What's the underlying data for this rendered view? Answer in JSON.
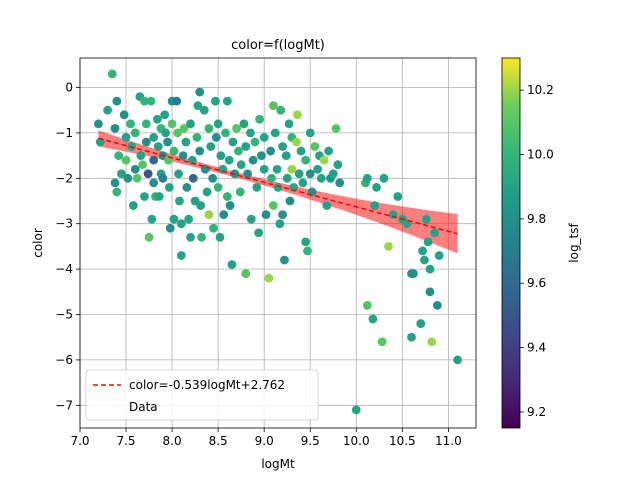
{
  "chart_data": {
    "type": "scatter",
    "title": "color=f(logMt)",
    "xlabel": "logMt",
    "ylabel": "color",
    "xlim": [
      7.0,
      11.3
    ],
    "ylim": [
      -7.5,
      0.65
    ],
    "xticks": [
      7.0,
      7.5,
      8.0,
      8.5,
      9.0,
      9.5,
      10.0,
      10.5,
      11.0
    ],
    "yticks": [
      0,
      -1,
      -2,
      -3,
      -4,
      -5,
      -6,
      -7
    ],
    "grid": true,
    "legend_position": "lower-left",
    "legend": [
      "color=-0.539logMt+2.762",
      "Data"
    ],
    "fit": {
      "slope": -0.539,
      "intercept": 2.762,
      "x_range": [
        7.2,
        11.1
      ],
      "color": "#ff0000",
      "band_color": "#ff0000"
    },
    "colorbar": {
      "label": "log_tsf",
      "min": 9.15,
      "max": 10.3,
      "ticks": [
        9.2,
        9.4,
        9.6,
        9.8,
        10.0,
        10.2
      ]
    },
    "points": [
      [
        7.2,
        -0.8,
        9.8
      ],
      [
        7.22,
        -1.2,
        9.9
      ],
      [
        7.3,
        -0.5,
        9.9
      ],
      [
        7.35,
        0.3,
        10.0
      ],
      [
        7.38,
        -0.9,
        9.8
      ],
      [
        7.4,
        -0.3,
        9.8
      ],
      [
        7.42,
        -1.5,
        10.0
      ],
      [
        7.38,
        -2.1,
        9.8
      ],
      [
        7.4,
        -2.3,
        10.0
      ],
      [
        7.45,
        -1.9,
        9.9
      ],
      [
        7.48,
        -0.6,
        9.8
      ],
      [
        7.5,
        -1.1,
        9.9
      ],
      [
        7.5,
        -1.6,
        10.1
      ],
      [
        7.52,
        -2.0,
        9.8
      ],
      [
        7.55,
        -0.8,
        10.0
      ],
      [
        7.56,
        -1.3,
        9.9
      ],
      [
        7.58,
        -2.6,
        9.9
      ],
      [
        7.6,
        -1.0,
        10.0
      ],
      [
        7.6,
        -1.8,
        9.8
      ],
      [
        7.62,
        -2.0,
        10.1
      ],
      [
        7.65,
        -0.2,
        9.9
      ],
      [
        7.66,
        -1.5,
        9.9
      ],
      [
        7.68,
        -1.7,
        10.1
      ],
      [
        7.7,
        -0.3,
        10.0
      ],
      [
        7.7,
        -2.4,
        9.9
      ],
      [
        7.72,
        -0.8,
        10.0
      ],
      [
        7.72,
        -1.2,
        9.8
      ],
      [
        7.74,
        -1.9,
        9.5
      ],
      [
        7.75,
        -3.3,
        10.1
      ],
      [
        7.77,
        -0.3,
        10.0
      ],
      [
        7.78,
        -2.9,
        9.9
      ],
      [
        7.8,
        -1.1,
        9.9
      ],
      [
        7.8,
        -1.6,
        9.6
      ],
      [
        7.8,
        -2.1,
        9.8
      ],
      [
        7.82,
        -2.4,
        10.0
      ],
      [
        7.84,
        -0.7,
        9.9
      ],
      [
        7.85,
        -1.3,
        9.9
      ],
      [
        7.86,
        -2.4,
        9.9
      ],
      [
        7.88,
        -0.9,
        10.0
      ],
      [
        7.88,
        -1.9,
        9.9
      ],
      [
        7.9,
        -1.5,
        9.8
      ],
      [
        7.9,
        -2.0,
        9.7
      ],
      [
        7.92,
        -0.6,
        9.9
      ],
      [
        7.93,
        -1.0,
        9.9
      ],
      [
        7.95,
        -1.2,
        9.8
      ],
      [
        7.96,
        -1.6,
        10.1
      ],
      [
        7.97,
        -2.2,
        9.9
      ],
      [
        7.98,
        -3.1,
        9.8
      ],
      [
        8.0,
        -0.3,
        9.8
      ],
      [
        8.0,
        -0.8,
        10.1
      ],
      [
        8.02,
        -1.4,
        10.0
      ],
      [
        8.02,
        -2.9,
        9.9
      ],
      [
        8.05,
        -0.3,
        9.7
      ],
      [
        8.06,
        -1.0,
        10.1
      ],
      [
        8.07,
        -1.9,
        9.9
      ],
      [
        8.08,
        -2.5,
        9.9
      ],
      [
        8.1,
        -3.0,
        9.9
      ],
      [
        8.1,
        -3.7,
        9.9
      ],
      [
        8.12,
        -1.5,
        9.8
      ],
      [
        8.13,
        -0.9,
        10.1
      ],
      [
        8.15,
        -1.2,
        9.9
      ],
      [
        8.16,
        -2.2,
        9.8
      ],
      [
        8.18,
        -2.9,
        9.9
      ],
      [
        8.2,
        -0.8,
        9.9
      ],
      [
        8.2,
        -3.3,
        9.9
      ],
      [
        8.22,
        -1.6,
        9.9
      ],
      [
        8.23,
        -2.0,
        9.6
      ],
      [
        8.25,
        -2.5,
        9.9
      ],
      [
        8.27,
        -1.1,
        10.0
      ],
      [
        8.28,
        -0.4,
        9.9
      ],
      [
        8.3,
        -0.1,
        9.8
      ],
      [
        8.3,
        -1.4,
        9.8
      ],
      [
        8.31,
        -2.6,
        9.9
      ],
      [
        8.32,
        -3.3,
        10.0
      ],
      [
        8.35,
        -0.5,
        9.9
      ],
      [
        8.36,
        -1.8,
        9.8
      ],
      [
        8.38,
        -2.3,
        9.9
      ],
      [
        8.4,
        -0.9,
        10.0
      ],
      [
        8.4,
        -2.8,
        10.2
      ],
      [
        8.42,
        -1.3,
        9.9
      ],
      [
        8.44,
        -2.0,
        9.8
      ],
      [
        8.45,
        -3.1,
        10.0
      ],
      [
        8.47,
        -0.3,
        9.9
      ],
      [
        8.48,
        -1.1,
        9.8
      ],
      [
        8.5,
        -0.8,
        9.9
      ],
      [
        8.5,
        -2.2,
        10.0
      ],
      [
        8.52,
        -3.3,
        9.9
      ],
      [
        8.53,
        -1.5,
        9.9
      ],
      [
        8.55,
        -1.8,
        9.9
      ],
      [
        8.56,
        -2.8,
        9.8
      ],
      [
        8.58,
        -1.0,
        10.0
      ],
      [
        8.6,
        -0.3,
        9.9
      ],
      [
        8.6,
        -2.4,
        10.0
      ],
      [
        8.62,
        -1.6,
        9.9
      ],
      [
        8.63,
        -2.6,
        9.8
      ],
      [
        8.65,
        -3.9,
        9.9
      ],
      [
        8.66,
        -1.2,
        9.9
      ],
      [
        8.68,
        -1.9,
        9.8
      ],
      [
        8.7,
        -0.9,
        10.1
      ],
      [
        8.72,
        -1.4,
        10.0
      ],
      [
        8.74,
        -2.3,
        10.0
      ],
      [
        8.75,
        -1.7,
        9.9
      ],
      [
        8.78,
        -0.8,
        9.9
      ],
      [
        8.8,
        -1.3,
        9.9
      ],
      [
        8.8,
        -4.1,
        10.1
      ],
      [
        8.82,
        -1.9,
        9.8
      ],
      [
        8.85,
        -1.0,
        9.9
      ],
      [
        8.86,
        -2.9,
        9.9
      ],
      [
        8.88,
        -1.6,
        9.8
      ],
      [
        8.9,
        -1.2,
        10.0
      ],
      [
        8.92,
        -2.2,
        9.9
      ],
      [
        8.94,
        -3.2,
        9.9
      ],
      [
        8.95,
        -0.7,
        10.0
      ],
      [
        8.97,
        -1.5,
        9.8
      ],
      [
        9.0,
        -1.1,
        9.9
      ],
      [
        9.0,
        -1.8,
        9.9
      ],
      [
        9.02,
        -2.8,
        9.8
      ],
      [
        9.05,
        -4.2,
        10.2
      ],
      [
        9.07,
        -1.4,
        9.8
      ],
      [
        9.08,
        -2.0,
        10.0
      ],
      [
        9.1,
        -0.4,
        10.1
      ],
      [
        9.1,
        -2.6,
        10.1
      ],
      [
        9.12,
        -1.0,
        9.9
      ],
      [
        9.14,
        -1.8,
        9.9
      ],
      [
        9.15,
        -2.2,
        9.9
      ],
      [
        9.17,
        -3.0,
        9.9
      ],
      [
        9.18,
        -0.5,
        10.0
      ],
      [
        9.2,
        -1.3,
        9.9
      ],
      [
        9.2,
        -2.8,
        9.8
      ],
      [
        9.22,
        -3.8,
        9.8
      ],
      [
        9.24,
        -1.5,
        9.9
      ],
      [
        9.25,
        -2.0,
        9.9
      ],
      [
        9.27,
        -0.8,
        9.9
      ],
      [
        9.28,
        -2.5,
        9.8
      ],
      [
        9.3,
        -1.1,
        10.0
      ],
      [
        9.3,
        -1.8,
        10.2
      ],
      [
        9.32,
        -2.2,
        9.9
      ],
      [
        9.35,
        -1.2,
        10.2
      ],
      [
        9.36,
        -0.6,
        10.2
      ],
      [
        9.38,
        -1.9,
        9.9
      ],
      [
        9.4,
        -1.4,
        9.9
      ],
      [
        9.42,
        -2.1,
        9.9
      ],
      [
        9.45,
        -1.6,
        10.0
      ],
      [
        9.45,
        -3.4,
        9.9
      ],
      [
        9.47,
        -3.6,
        10.0
      ],
      [
        9.5,
        -1.0,
        9.9
      ],
      [
        9.5,
        -1.9,
        9.8
      ],
      [
        9.52,
        -2.3,
        9.8
      ],
      [
        9.55,
        -1.3,
        10.1
      ],
      [
        9.58,
        -1.8,
        9.9
      ],
      [
        9.6,
        -1.5,
        9.9
      ],
      [
        9.62,
        -2.0,
        9.9
      ],
      [
        9.65,
        -1.6,
        10.2
      ],
      [
        9.68,
        -2.6,
        9.9
      ],
      [
        9.7,
        -1.4,
        9.9
      ],
      [
        9.72,
        -2.0,
        9.8
      ],
      [
        9.75,
        -1.9,
        9.9
      ],
      [
        9.78,
        -0.9,
        10.1
      ],
      [
        9.8,
        -1.7,
        9.9
      ],
      [
        9.82,
        -2.1,
        9.8
      ],
      [
        10.0,
        -7.1,
        9.9
      ],
      [
        10.1,
        -2.1,
        10.0
      ],
      [
        10.12,
        -2.0,
        9.9
      ],
      [
        10.12,
        -4.8,
        10.1
      ],
      [
        10.18,
        -5.1,
        9.9
      ],
      [
        10.2,
        -2.6,
        9.9
      ],
      [
        10.22,
        -2.2,
        9.9
      ],
      [
        10.28,
        -5.6,
        10.1
      ],
      [
        10.3,
        -2.0,
        9.9
      ],
      [
        10.35,
        -3.5,
        10.2
      ],
      [
        10.4,
        -2.8,
        9.9
      ],
      [
        10.45,
        -2.4,
        9.9
      ],
      [
        10.5,
        -2.9,
        9.9
      ],
      [
        10.55,
        -3.0,
        9.9
      ],
      [
        10.6,
        -4.1,
        9.8
      ],
      [
        10.62,
        -4.1,
        9.8
      ],
      [
        10.6,
        -5.5,
        9.9
      ],
      [
        10.7,
        -5.2,
        9.9
      ],
      [
        10.72,
        -3.6,
        9.9
      ],
      [
        10.74,
        -3.8,
        9.9
      ],
      [
        10.76,
        -2.9,
        9.9
      ],
      [
        10.78,
        -3.4,
        9.9
      ],
      [
        10.8,
        -4.0,
        9.9
      ],
      [
        10.8,
        -4.5,
        9.8
      ],
      [
        10.82,
        -5.6,
        10.2
      ],
      [
        10.85,
        -3.2,
        9.9
      ],
      [
        10.88,
        -4.8,
        9.8
      ],
      [
        10.9,
        -3.7,
        9.9
      ],
      [
        11.1,
        -6.0,
        9.9
      ]
    ]
  }
}
